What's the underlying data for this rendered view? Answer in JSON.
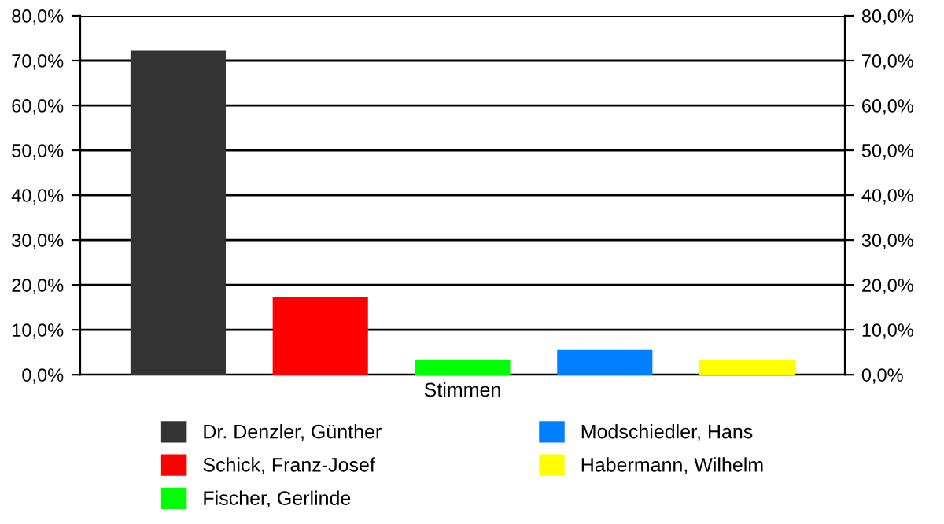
{
  "chart_data": {
    "type": "bar",
    "categories": [
      "Stimmen"
    ],
    "series": [
      {
        "name": "Dr. Denzler, Günther",
        "color": "#333333",
        "values": [
          72.2
        ]
      },
      {
        "name": "Schick, Franz-Josef",
        "color": "#ff0000",
        "values": [
          17.4
        ]
      },
      {
        "name": "Fischer, Gerlinde",
        "color": "#00ff00",
        "values": [
          3.3
        ]
      },
      {
        "name": "Modschiedler, Hans",
        "color": "#0080ff",
        "values": [
          5.5
        ]
      },
      {
        "name": "Habermann, Wilhelm",
        "color": "#ffff00",
        "values": [
          3.3
        ]
      }
    ],
    "ylim": [
      0,
      80
    ],
    "yticks": [
      {
        "value": 0,
        "label": "0,0%"
      },
      {
        "value": 10,
        "label": "10,0%"
      },
      {
        "value": 20,
        "label": "20,0%"
      },
      {
        "value": 30,
        "label": "30,0%"
      },
      {
        "value": 40,
        "label": "40,0%"
      },
      {
        "value": 50,
        "label": "50,0%"
      },
      {
        "value": 60,
        "label": "60,0%"
      },
      {
        "value": 70,
        "label": "70,0%"
      },
      {
        "value": 80,
        "label": "80,0%"
      }
    ],
    "grid": "y",
    "legend": "bottom"
  }
}
